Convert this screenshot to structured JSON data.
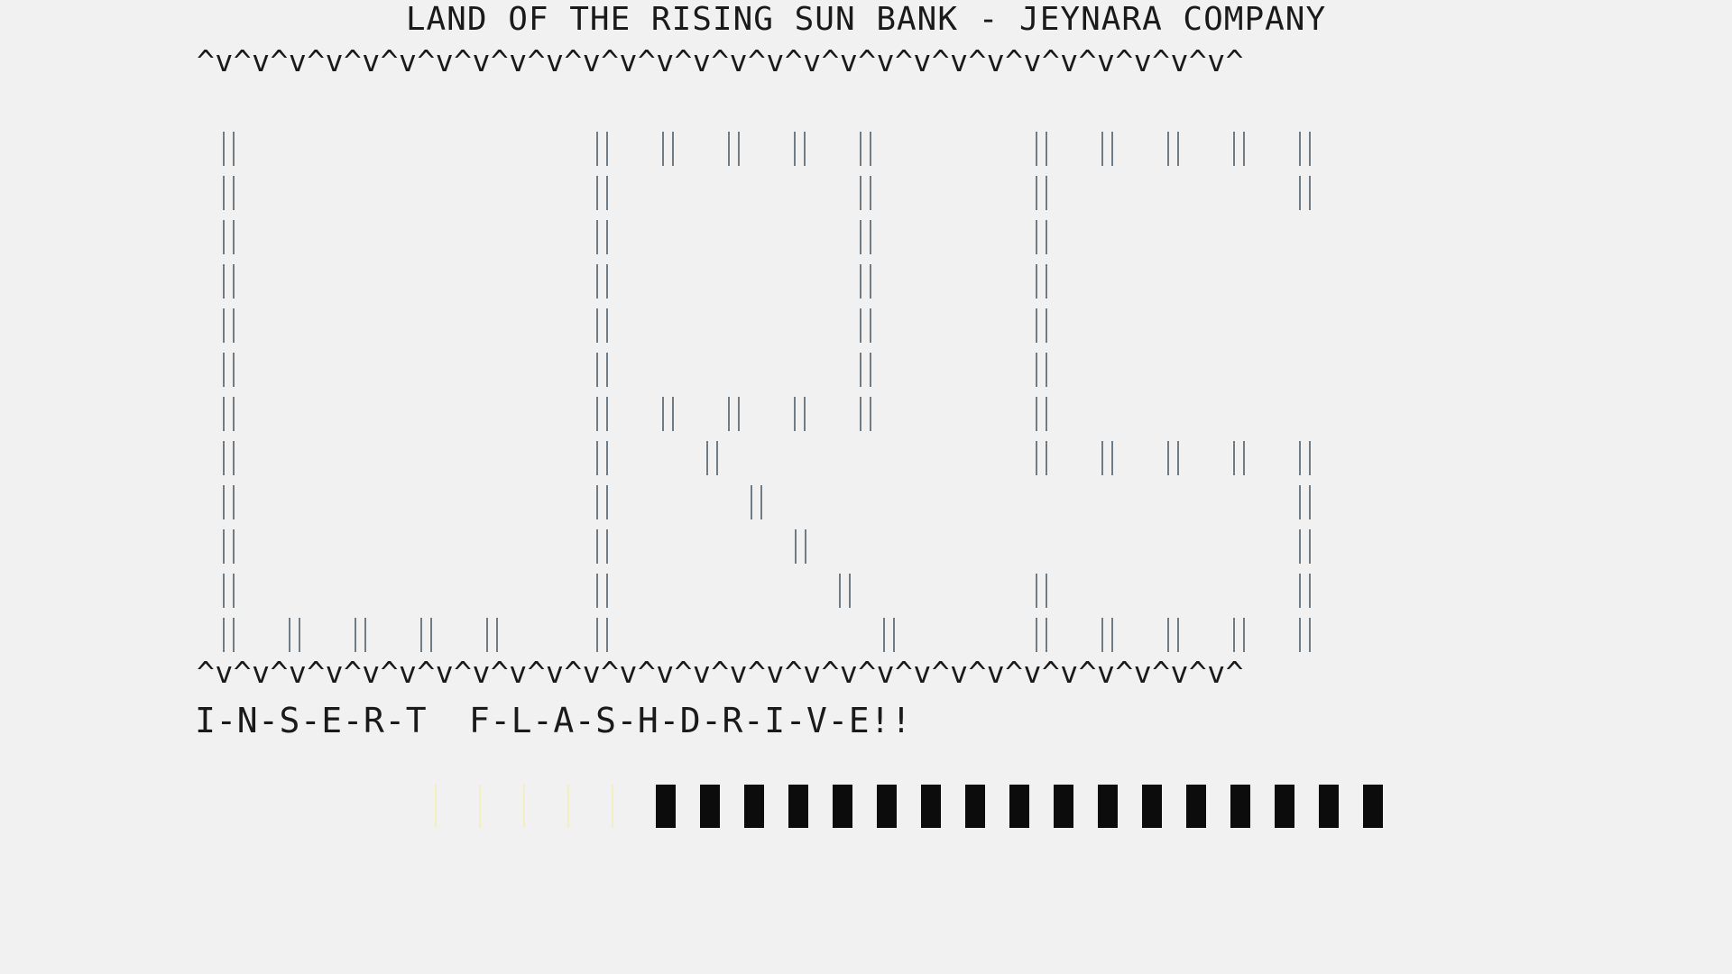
{
  "window": {
    "title": "LAND OF THE RISING SUN BANK - JEYNARA COMPANY"
  },
  "decoration": {
    "top_border": "^v^v^v^v^v^v^v^v^v^v^v^v^v^v^v^v^v^v^v^v^v^v^v^v^v^v^v^v^",
    "bottom_border": "^v^v^v^v^v^v^v^v^v^v^v^v^v^v^v^v^v^v^v^v^v^v^v^v^v^v^v^v^"
  },
  "logo": {
    "letters": "LRS",
    "bar_color": "#6f7c86"
  },
  "prompt": {
    "message": "I-N-S-E-R-T  F-L-A-S-H-D-R-I-V-E!!"
  },
  "progress": {
    "total_blocks": 22,
    "empty_blocks": 5,
    "filled_blocks": 17,
    "fill_fraction": 0.7727,
    "filled_color": "#0c0c0c",
    "empty_color": "#f4efbe"
  }
}
